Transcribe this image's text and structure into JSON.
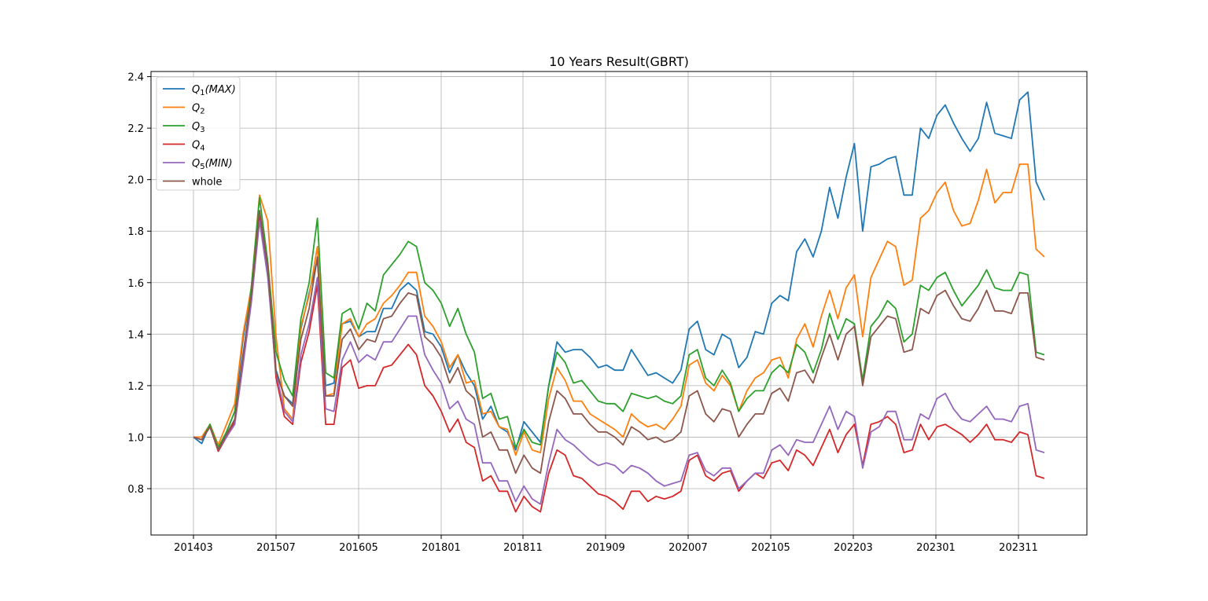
{
  "chart_data": {
    "type": "line",
    "title": "10 Years Result(GBRT)",
    "xlabel": "",
    "ylabel": "",
    "ylim": [
      0.62,
      2.42
    ],
    "grid": true,
    "legend_placement": "top-left",
    "x_ticks": [
      "201403",
      "201507",
      "201605",
      "201801",
      "201811",
      "201909",
      "202007",
      "202105",
      "202203",
      "202301",
      "202311"
    ],
    "y_ticks": [
      "0.8",
      "1.0",
      "1.2",
      "1.4",
      "1.6",
      "1.8",
      "2.0",
      "2.2",
      "2.4"
    ],
    "series": [
      {
        "name": "Q1(MAX)",
        "legend_main": "Q",
        "legend_sub": "1",
        "legend_suffix": "(MAX)",
        "color": "#1f77b4",
        "values": [
          1.0,
          0.975,
          1.05,
          0.955,
          1.02,
          1.1,
          1.38,
          1.58,
          1.84,
          1.65,
          1.26,
          1.16,
          1.13,
          1.42,
          1.56,
          1.69,
          1.2,
          1.21,
          1.44,
          1.45,
          1.39,
          1.41,
          1.41,
          1.5,
          1.5,
          1.57,
          1.6,
          1.57,
          1.41,
          1.4,
          1.35,
          1.25,
          1.32,
          1.25,
          1.2,
          1.07,
          1.12,
          1.04,
          1.02,
          0.95,
          1.06,
          1.02,
          0.98,
          1.2,
          1.37,
          1.33,
          1.34,
          1.34,
          1.31,
          1.27,
          1.28,
          1.26,
          1.26,
          1.34,
          1.29,
          1.24,
          1.25,
          1.23,
          1.21,
          1.26,
          1.42,
          1.45,
          1.34,
          1.32,
          1.4,
          1.38,
          1.27,
          1.31,
          1.41,
          1.4,
          1.52,
          1.55,
          1.53,
          1.72,
          1.77,
          1.7,
          1.8,
          1.97,
          1.85,
          2.01,
          2.14,
          1.8,
          2.05,
          2.06,
          2.08,
          2.09,
          1.94,
          1.94,
          2.2,
          2.16,
          2.25,
          2.29,
          2.22,
          2.16,
          2.11,
          2.16,
          2.3,
          2.18,
          2.17,
          2.16,
          2.31,
          2.34,
          1.99,
          1.92
        ]
      },
      {
        "name": "Q2",
        "legend_main": "Q",
        "legend_sub": "2",
        "legend_suffix": "",
        "color": "#ff7f0e",
        "values": [
          1.0,
          1.0,
          1.05,
          0.97,
          1.05,
          1.13,
          1.4,
          1.58,
          1.94,
          1.84,
          1.39,
          1.11,
          1.07,
          1.43,
          1.55,
          1.74,
          1.16,
          1.17,
          1.44,
          1.46,
          1.39,
          1.44,
          1.46,
          1.52,
          1.55,
          1.59,
          1.64,
          1.64,
          1.47,
          1.43,
          1.37,
          1.27,
          1.32,
          1.21,
          1.22,
          1.09,
          1.1,
          1.04,
          1.03,
          0.93,
          1.02,
          0.95,
          0.94,
          1.15,
          1.27,
          1.22,
          1.14,
          1.14,
          1.09,
          1.07,
          1.05,
          1.03,
          1.0,
          1.09,
          1.06,
          1.04,
          1.05,
          1.03,
          1.07,
          1.12,
          1.28,
          1.3,
          1.21,
          1.18,
          1.24,
          1.2,
          1.1,
          1.18,
          1.23,
          1.25,
          1.3,
          1.31,
          1.23,
          1.38,
          1.44,
          1.35,
          1.47,
          1.57,
          1.46,
          1.58,
          1.63,
          1.39,
          1.62,
          1.69,
          1.76,
          1.74,
          1.59,
          1.61,
          1.85,
          1.88,
          1.95,
          1.99,
          1.88,
          1.82,
          1.83,
          1.92,
          2.04,
          1.91,
          1.95,
          1.95,
          2.06,
          2.06,
          1.73,
          1.7
        ]
      },
      {
        "name": "Q3",
        "legend_main": "Q",
        "legend_sub": "3",
        "legend_suffix": "",
        "color": "#2ca02c",
        "values": [
          1.0,
          0.99,
          1.05,
          0.96,
          1.02,
          1.1,
          1.3,
          1.58,
          1.93,
          1.68,
          1.33,
          1.22,
          1.16,
          1.46,
          1.6,
          1.85,
          1.25,
          1.23,
          1.48,
          1.5,
          1.42,
          1.52,
          1.49,
          1.63,
          1.67,
          1.71,
          1.76,
          1.74,
          1.6,
          1.57,
          1.52,
          1.43,
          1.5,
          1.4,
          1.33,
          1.15,
          1.17,
          1.07,
          1.08,
          0.96,
          1.03,
          0.98,
          0.97,
          1.2,
          1.33,
          1.29,
          1.21,
          1.22,
          1.18,
          1.14,
          1.13,
          1.13,
          1.1,
          1.17,
          1.16,
          1.15,
          1.16,
          1.14,
          1.13,
          1.16,
          1.32,
          1.34,
          1.23,
          1.2,
          1.26,
          1.21,
          1.1,
          1.15,
          1.18,
          1.18,
          1.25,
          1.28,
          1.25,
          1.36,
          1.33,
          1.25,
          1.34,
          1.48,
          1.38,
          1.46,
          1.44,
          1.22,
          1.43,
          1.47,
          1.53,
          1.5,
          1.37,
          1.4,
          1.59,
          1.57,
          1.62,
          1.64,
          1.57,
          1.51,
          1.55,
          1.59,
          1.65,
          1.58,
          1.57,
          1.57,
          1.64,
          1.63,
          1.33,
          1.32
        ]
      },
      {
        "name": "Q4",
        "legend_main": "Q",
        "legend_sub": "4",
        "legend_suffix": "",
        "color": "#d62728",
        "values": [
          1.0,
          0.99,
          1.04,
          0.945,
          1.0,
          1.06,
          1.3,
          1.54,
          1.86,
          1.66,
          1.23,
          1.08,
          1.05,
          1.29,
          1.41,
          1.59,
          1.05,
          1.05,
          1.27,
          1.3,
          1.19,
          1.2,
          1.2,
          1.27,
          1.28,
          1.32,
          1.36,
          1.32,
          1.2,
          1.16,
          1.1,
          1.02,
          1.07,
          0.98,
          0.96,
          0.83,
          0.85,
          0.79,
          0.79,
          0.71,
          0.77,
          0.73,
          0.71,
          0.86,
          0.95,
          0.93,
          0.85,
          0.84,
          0.81,
          0.78,
          0.77,
          0.75,
          0.72,
          0.79,
          0.79,
          0.75,
          0.77,
          0.76,
          0.77,
          0.79,
          0.91,
          0.93,
          0.85,
          0.83,
          0.86,
          0.87,
          0.79,
          0.83,
          0.86,
          0.84,
          0.9,
          0.91,
          0.87,
          0.95,
          0.93,
          0.89,
          0.96,
          1.03,
          0.94,
          1.01,
          1.05,
          0.89,
          1.05,
          1.06,
          1.08,
          1.05,
          0.94,
          0.95,
          1.05,
          0.99,
          1.04,
          1.05,
          1.03,
          1.01,
          0.98,
          1.01,
          1.05,
          0.99,
          0.99,
          0.98,
          1.02,
          1.01,
          0.85,
          0.84
        ]
      },
      {
        "name": "Q5(MIN)",
        "legend_main": "Q",
        "legend_sub": "5",
        "legend_suffix": "(MIN)",
        "color": "#9467bd",
        "values": [
          1.0,
          0.99,
          1.04,
          0.95,
          1.0,
          1.05,
          1.28,
          1.52,
          1.84,
          1.62,
          1.25,
          1.1,
          1.06,
          1.32,
          1.44,
          1.62,
          1.11,
          1.1,
          1.3,
          1.37,
          1.29,
          1.32,
          1.3,
          1.37,
          1.37,
          1.42,
          1.47,
          1.47,
          1.32,
          1.26,
          1.21,
          1.11,
          1.14,
          1.07,
          1.05,
          0.9,
          0.9,
          0.83,
          0.83,
          0.75,
          0.81,
          0.76,
          0.74,
          0.9,
          1.03,
          0.99,
          0.97,
          0.94,
          0.91,
          0.89,
          0.9,
          0.89,
          0.86,
          0.89,
          0.88,
          0.86,
          0.83,
          0.81,
          0.82,
          0.83,
          0.93,
          0.94,
          0.87,
          0.85,
          0.88,
          0.88,
          0.8,
          0.83,
          0.86,
          0.86,
          0.95,
          0.97,
          0.93,
          0.99,
          0.98,
          0.98,
          1.05,
          1.12,
          1.03,
          1.1,
          1.08,
          0.88,
          1.02,
          1.04,
          1.1,
          1.1,
          0.99,
          0.99,
          1.09,
          1.07,
          1.15,
          1.17,
          1.11,
          1.07,
          1.06,
          1.09,
          1.12,
          1.07,
          1.07,
          1.06,
          1.12,
          1.13,
          0.95,
          0.94
        ]
      },
      {
        "name": "whole",
        "legend_main": "whole",
        "legend_sub": "",
        "legend_suffix": "",
        "color": "#8c564b",
        "values": [
          1.0,
          0.99,
          1.04,
          0.95,
          1.01,
          1.07,
          1.32,
          1.55,
          1.88,
          1.66,
          1.25,
          1.16,
          1.12,
          1.38,
          1.5,
          1.7,
          1.16,
          1.16,
          1.38,
          1.42,
          1.34,
          1.38,
          1.37,
          1.46,
          1.47,
          1.52,
          1.56,
          1.55,
          1.39,
          1.36,
          1.31,
          1.21,
          1.27,
          1.18,
          1.15,
          1.0,
          1.02,
          0.95,
          0.95,
          0.86,
          0.93,
          0.88,
          0.86,
          1.06,
          1.18,
          1.15,
          1.09,
          1.09,
          1.05,
          1.02,
          1.02,
          1.0,
          0.97,
          1.04,
          1.02,
          0.99,
          1.0,
          0.98,
          0.99,
          1.02,
          1.16,
          1.18,
          1.09,
          1.06,
          1.11,
          1.1,
          1.0,
          1.05,
          1.09,
          1.09,
          1.17,
          1.19,
          1.14,
          1.25,
          1.26,
          1.21,
          1.31,
          1.4,
          1.3,
          1.4,
          1.43,
          1.2,
          1.39,
          1.43,
          1.47,
          1.46,
          1.33,
          1.34,
          1.5,
          1.48,
          1.55,
          1.57,
          1.51,
          1.46,
          1.45,
          1.5,
          1.57,
          1.49,
          1.49,
          1.48,
          1.56,
          1.56,
          1.31,
          1.3
        ]
      }
    ]
  }
}
